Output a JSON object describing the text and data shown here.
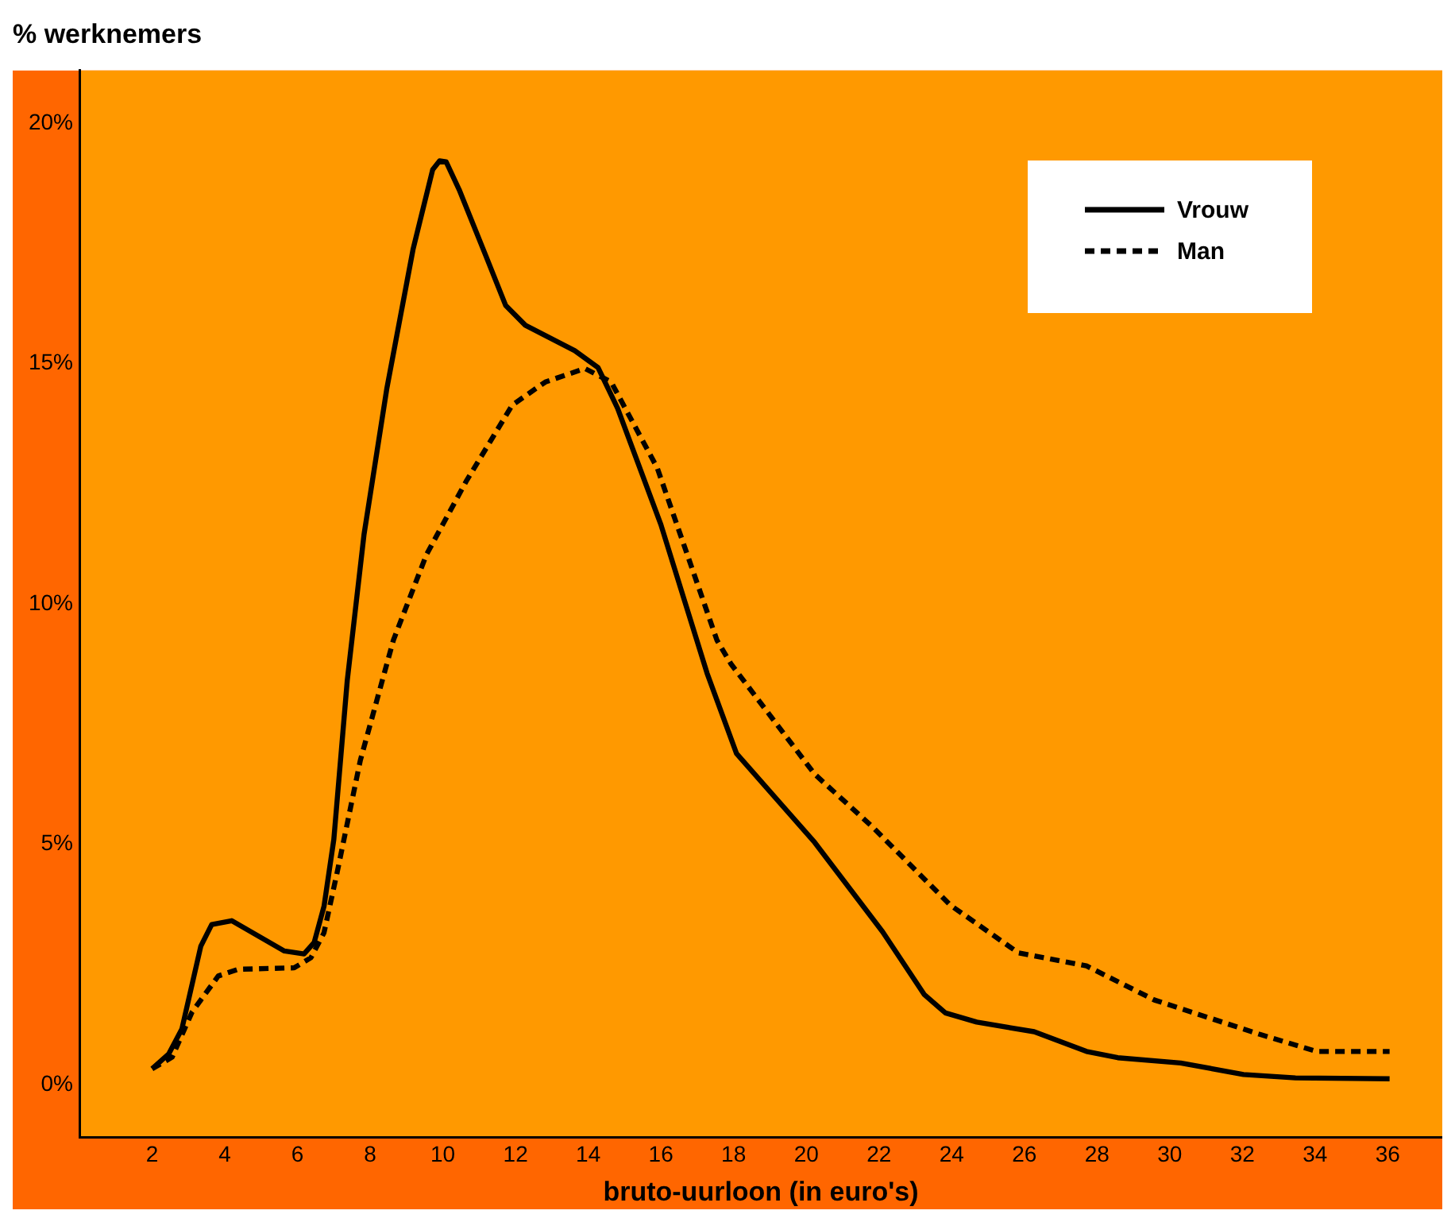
{
  "chart_data": {
    "type": "line",
    "title": "% werknemers",
    "xlabel": "bruto-uurloon (in euro's)",
    "xlim": [
      0,
      37.5
    ],
    "xticks": [
      2,
      4,
      6,
      8,
      10,
      12,
      14,
      16,
      18,
      20,
      22,
      24,
      26,
      28,
      30,
      32,
      34,
      36
    ],
    "ylim": [
      -1.1,
      21.1
    ],
    "yticks": [
      {
        "value": 0,
        "label": "0%"
      },
      {
        "value": 5,
        "label": "5%"
      },
      {
        "value": 10,
        "label": "10%"
      },
      {
        "value": 15,
        "label": "15%"
      },
      {
        "value": 20,
        "label": "20%"
      }
    ],
    "grid": false,
    "legend": "top right",
    "marker": "none",
    "series": [
      {
        "name": "Vrouw",
        "color": "#000000",
        "line_style": "solid",
        "x": [
          2,
          2.46,
          2.82,
          3.34,
          3.64,
          4.19,
          5.64,
          6.18,
          6.46,
          6.73,
          7.0,
          7.37,
          7.83,
          8.46,
          9.18,
          9.72,
          9.91,
          10.09,
          10.45,
          11.18,
          11.73,
          12.27,
          13.63,
          14.27,
          14.81,
          16.0,
          17.27,
          18.08,
          20.23,
          22.1,
          23.25,
          23.83,
          24.69,
          26.27,
          27.71,
          28.57,
          30.3,
          32.03,
          33.46,
          36.05
        ],
        "values": [
          0.33,
          0.64,
          1.16,
          2.88,
          3.33,
          3.41,
          2.78,
          2.72,
          2.96,
          3.71,
          5.1,
          8.41,
          11.44,
          14.49,
          17.38,
          19.04,
          19.22,
          19.2,
          18.62,
          17.25,
          16.21,
          15.8,
          15.27,
          14.92,
          14.07,
          11.65,
          8.56,
          6.89,
          5.04,
          3.18,
          1.87,
          1.49,
          1.3,
          1.1,
          0.69,
          0.56,
          0.45,
          0.21,
          0.14,
          0.12
        ]
      },
      {
        "name": "Man",
        "color": "#000000",
        "line_style": "dashed",
        "x": [
          2,
          2.55,
          3.1,
          3.82,
          4.37,
          5.91,
          6.37,
          6.73,
          7.09,
          7.73,
          8.64,
          9.55,
          10.64,
          11.91,
          12.82,
          13.91,
          14.63,
          15.9,
          17.54,
          17.93,
          20.23,
          21.81,
          23.97,
          25.84,
          27.71,
          29.58,
          32.46,
          34.04,
          36.05
        ],
        "values": [
          0.33,
          0.57,
          1.51,
          2.26,
          2.4,
          2.43,
          2.64,
          3.16,
          4.41,
          6.75,
          9.25,
          11.03,
          12.55,
          14.14,
          14.62,
          14.9,
          14.62,
          12.83,
          9.25,
          8.75,
          6.46,
          5.37,
          3.73,
          2.74,
          2.47,
          1.76,
          1.05,
          0.69,
          0.69
        ]
      }
    ]
  }
}
